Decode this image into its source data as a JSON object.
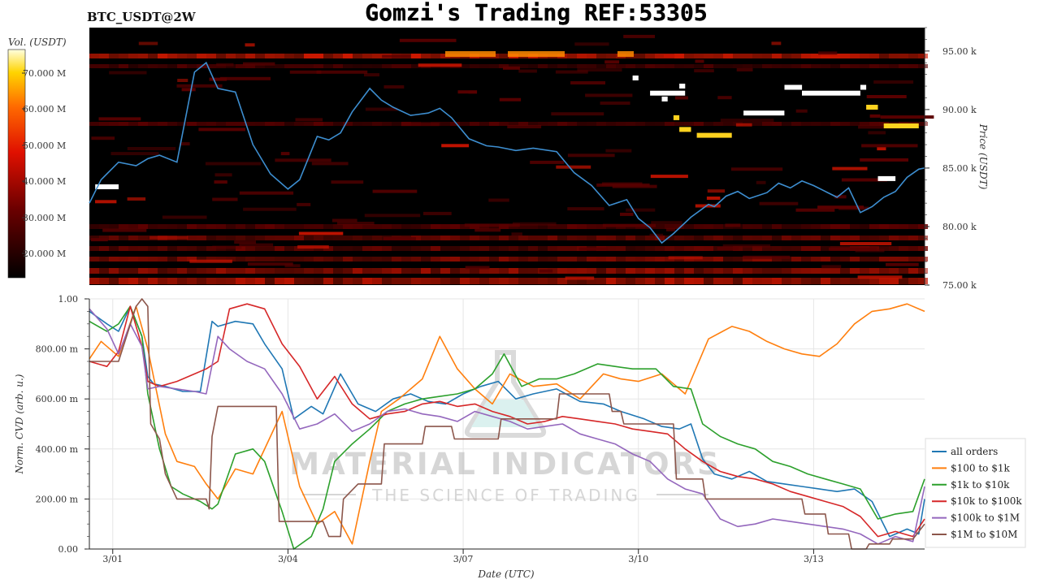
{
  "header": {
    "ticker": "BTC_USDT@2W",
    "title": "Gomzi's Trading REF:53305"
  },
  "watermark": {
    "line1": "MATERIAL INDICATORS",
    "line2": "THE SCIENCE OF TRADING"
  },
  "colors": {
    "heat_bg": "#000000",
    "price_line": "#3d8ed0",
    "big_order": "#ffffff",
    "mid_order": "#ffd21f"
  },
  "chart_data": [
    {
      "type": "heatmap",
      "title": "",
      "colorbar_label": "Vol. (USDT)",
      "colorbar_ticks": [
        "70.000 M",
        "60.000 M",
        "50.000 M",
        "40.000 M",
        "30.000 M",
        "20.000 M"
      ],
      "ylabel": "Price (USDT)",
      "ytick_labels": [
        "95.00 k",
        "90.00 k",
        "85.00 k",
        "80.00 k",
        "75.00 k"
      ],
      "ylim": [
        75000,
        97000
      ],
      "grid": false,
      "price_series": {
        "name": "",
        "x_days": [
          0.0,
          0.2,
          0.5,
          0.8,
          1.0,
          1.2,
          1.5,
          1.8,
          2.0,
          2.2,
          2.5,
          2.8,
          3.1,
          3.4,
          3.6,
          3.9,
          4.1,
          4.3,
          4.5,
          4.8,
          5.0,
          5.2,
          5.5,
          5.8,
          6.0,
          6.2,
          6.5,
          6.8,
          7.0,
          7.3,
          7.6,
          8.0,
          8.3,
          8.6,
          8.9,
          9.2,
          9.4,
          9.6,
          9.8,
          10.0,
          10.3,
          10.6,
          10.7,
          10.9,
          11.1,
          11.3,
          11.6,
          11.8,
          12.0,
          12.2,
          12.4,
          12.6,
          12.8,
          13.0,
          13.2,
          13.4,
          13.6,
          13.8,
          14.0,
          14.2,
          14.3
        ],
        "price": [
          82000,
          84000,
          85500,
          85200,
          85800,
          86100,
          85500,
          93200,
          94000,
          91800,
          91500,
          87000,
          84500,
          83200,
          84000,
          87700,
          87400,
          88000,
          89800,
          91800,
          90800,
          90200,
          89500,
          89700,
          90100,
          89300,
          87500,
          86900,
          86800,
          86500,
          86700,
          86400,
          84600,
          83500,
          81800,
          82300,
          80700,
          79900,
          78600,
          79400,
          80800,
          81900,
          81700,
          82600,
          83000,
          82400,
          82900,
          83700,
          83300,
          83900,
          83500,
          83000,
          82500,
          83300,
          81200,
          81700,
          82500,
          83000,
          84200,
          84900,
          85000
        ]
      },
      "large_orders": [
        {
          "price": 83400,
          "x_start": 0.1,
          "x_end": 0.5,
          "color": "white"
        },
        {
          "price": 92700,
          "x_start": 9.3,
          "x_end": 9.4,
          "color": "white"
        },
        {
          "price": 91400,
          "x_start": 9.6,
          "x_end": 10.2,
          "color": "white"
        },
        {
          "price": 90900,
          "x_start": 9.8,
          "x_end": 9.9,
          "color": "white"
        },
        {
          "price": 92000,
          "x_start": 10.1,
          "x_end": 10.2,
          "color": "white"
        },
        {
          "price": 89700,
          "x_start": 11.2,
          "x_end": 11.9,
          "color": "white"
        },
        {
          "price": 91900,
          "x_start": 11.9,
          "x_end": 12.2,
          "color": "white"
        },
        {
          "price": 91400,
          "x_start": 12.2,
          "x_end": 13.2,
          "color": "white"
        },
        {
          "price": 91900,
          "x_start": 13.2,
          "x_end": 13.3,
          "color": "white"
        },
        {
          "price": 84100,
          "x_start": 13.5,
          "x_end": 13.8,
          "color": "white"
        },
        {
          "price": 89300,
          "x_start": 10.0,
          "x_end": 10.1,
          "color": "yellow"
        },
        {
          "price": 88300,
          "x_start": 10.1,
          "x_end": 10.3,
          "color": "yellow"
        },
        {
          "price": 87800,
          "x_start": 10.4,
          "x_end": 11.0,
          "color": "yellow"
        },
        {
          "price": 90200,
          "x_start": 13.3,
          "x_end": 13.5,
          "color": "yellow"
        },
        {
          "price": 88600,
          "x_start": 13.6,
          "x_end": 14.2,
          "color": "yellow"
        }
      ]
    },
    {
      "type": "line",
      "title": "",
      "xlabel": "Date (UTC)",
      "ylabel": "Norm. CVD (arb. u.)",
      "xtick_labels": [
        "3/01",
        "3/04",
        "3/07",
        "3/10",
        "3/13"
      ],
      "xtick_days": [
        0.4,
        3.4,
        6.4,
        9.4,
        12.4
      ],
      "xlim": [
        0,
        14.3
      ],
      "ylim": [
        0,
        1
      ],
      "ytick_labels": [
        "0.00",
        "200.00 m",
        "400.00 m",
        "600.00 m",
        "800.00 m",
        "1.00"
      ],
      "grid": true,
      "legend": "right",
      "series": [
        {
          "name": "all orders",
          "color": "#1f77b4",
          "x": [
            0.0,
            0.3,
            0.5,
            0.7,
            0.9,
            1.0,
            1.1,
            1.3,
            1.6,
            1.9,
            2.1,
            2.2,
            2.5,
            2.8,
            3.0,
            3.3,
            3.5,
            3.8,
            4.0,
            4.3,
            4.6,
            4.9,
            5.2,
            5.5,
            5.8,
            6.1,
            6.4,
            6.7,
            7.0,
            7.3,
            7.6,
            8.0,
            8.4,
            8.8,
            9.1,
            9.5,
            9.8,
            10.1,
            10.3,
            10.5,
            10.7,
            11.0,
            11.3,
            11.6,
            11.9,
            12.2,
            12.5,
            12.8,
            13.1,
            13.4,
            13.7,
            14.0,
            14.2,
            14.3
          ],
          "y": [
            0.95,
            0.9,
            0.87,
            0.97,
            0.85,
            0.69,
            0.66,
            0.65,
            0.63,
            0.63,
            0.91,
            0.89,
            0.91,
            0.9,
            0.82,
            0.72,
            0.52,
            0.57,
            0.54,
            0.7,
            0.58,
            0.55,
            0.6,
            0.62,
            0.59,
            0.58,
            0.62,
            0.65,
            0.67,
            0.6,
            0.62,
            0.64,
            0.59,
            0.58,
            0.55,
            0.52,
            0.49,
            0.48,
            0.5,
            0.36,
            0.3,
            0.28,
            0.31,
            0.27,
            0.26,
            0.25,
            0.24,
            0.23,
            0.24,
            0.19,
            0.05,
            0.08,
            0.06,
            0.2
          ]
        },
        {
          "name": "$100 to $1k",
          "color": "#ff7f0e",
          "x": [
            0.0,
            0.2,
            0.5,
            0.8,
            1.0,
            1.3,
            1.5,
            1.8,
            2.0,
            2.2,
            2.5,
            2.8,
            3.1,
            3.3,
            3.6,
            3.9,
            4.2,
            4.5,
            4.8,
            5.0,
            5.3,
            5.7,
            6.0,
            6.3,
            6.6,
            6.9,
            7.2,
            7.6,
            8.0,
            8.4,
            8.8,
            9.1,
            9.4,
            9.8,
            10.2,
            10.6,
            11.0,
            11.3,
            11.6,
            11.9,
            12.2,
            12.5,
            12.8,
            13.1,
            13.4,
            13.7,
            14.0,
            14.3
          ],
          "y": [
            0.76,
            0.83,
            0.77,
            0.97,
            0.8,
            0.46,
            0.35,
            0.33,
            0.26,
            0.2,
            0.32,
            0.3,
            0.45,
            0.55,
            0.25,
            0.1,
            0.15,
            0.02,
            0.35,
            0.55,
            0.6,
            0.68,
            0.85,
            0.72,
            0.64,
            0.58,
            0.7,
            0.65,
            0.66,
            0.6,
            0.7,
            0.68,
            0.67,
            0.7,
            0.62,
            0.84,
            0.89,
            0.87,
            0.83,
            0.8,
            0.78,
            0.77,
            0.82,
            0.9,
            0.95,
            0.96,
            0.98,
            0.95
          ]
        },
        {
          "name": "$1k to $10k",
          "color": "#2ca02c",
          "x": [
            0.0,
            0.3,
            0.5,
            0.7,
            0.9,
            1.0,
            1.2,
            1.4,
            1.6,
            1.9,
            2.1,
            2.2,
            2.5,
            2.8,
            3.0,
            3.3,
            3.5,
            3.8,
            4.0,
            4.2,
            4.5,
            4.8,
            5.1,
            5.4,
            5.7,
            6.0,
            6.3,
            6.6,
            6.9,
            7.1,
            7.4,
            7.7,
            8.0,
            8.3,
            8.7,
            9.0,
            9.3,
            9.7,
            10.0,
            10.3,
            10.5,
            10.8,
            11.1,
            11.4,
            11.7,
            12.0,
            12.3,
            12.6,
            12.9,
            13.2,
            13.5,
            13.8,
            14.1,
            14.3
          ],
          "y": [
            0.91,
            0.87,
            0.9,
            0.97,
            0.85,
            0.62,
            0.4,
            0.25,
            0.22,
            0.19,
            0.16,
            0.18,
            0.38,
            0.4,
            0.35,
            0.15,
            0.0,
            0.05,
            0.16,
            0.35,
            0.42,
            0.48,
            0.55,
            0.58,
            0.6,
            0.61,
            0.62,
            0.64,
            0.7,
            0.78,
            0.65,
            0.68,
            0.68,
            0.7,
            0.74,
            0.73,
            0.72,
            0.72,
            0.65,
            0.64,
            0.5,
            0.45,
            0.42,
            0.4,
            0.35,
            0.33,
            0.3,
            0.28,
            0.26,
            0.24,
            0.12,
            0.14,
            0.15,
            0.28
          ]
        },
        {
          "name": "$10k to $100k",
          "color": "#d62728",
          "x": [
            0.0,
            0.3,
            0.5,
            0.7,
            0.9,
            1.0,
            1.2,
            1.5,
            1.8,
            2.0,
            2.2,
            2.4,
            2.7,
            3.0,
            3.3,
            3.6,
            3.9,
            4.2,
            4.5,
            4.8,
            5.1,
            5.4,
            5.7,
            6.0,
            6.3,
            6.6,
            6.9,
            7.2,
            7.5,
            7.8,
            8.1,
            8.4,
            8.7,
            9.0,
            9.3,
            9.6,
            9.9,
            10.2,
            10.5,
            10.8,
            11.1,
            11.4,
            11.7,
            12.0,
            12.3,
            12.6,
            12.9,
            13.2,
            13.5,
            13.8,
            14.1,
            14.3
          ],
          "y": [
            0.75,
            0.73,
            0.79,
            0.97,
            0.81,
            0.67,
            0.65,
            0.67,
            0.7,
            0.72,
            0.75,
            0.96,
            0.98,
            0.96,
            0.82,
            0.73,
            0.6,
            0.69,
            0.58,
            0.52,
            0.54,
            0.55,
            0.58,
            0.59,
            0.57,
            0.58,
            0.55,
            0.53,
            0.5,
            0.51,
            0.53,
            0.52,
            0.51,
            0.5,
            0.48,
            0.47,
            0.46,
            0.4,
            0.35,
            0.31,
            0.29,
            0.28,
            0.26,
            0.23,
            0.21,
            0.19,
            0.17,
            0.13,
            0.05,
            0.07,
            0.05,
            0.12
          ]
        },
        {
          "name": "$100k to $1M",
          "color": "#9467bd",
          "x": [
            0.0,
            0.3,
            0.5,
            0.7,
            0.9,
            1.0,
            1.2,
            1.5,
            1.8,
            2.0,
            2.2,
            2.4,
            2.7,
            3.0,
            3.3,
            3.6,
            3.9,
            4.2,
            4.5,
            4.8,
            5.1,
            5.4,
            5.7,
            6.0,
            6.3,
            6.6,
            6.9,
            7.2,
            7.5,
            7.8,
            8.1,
            8.4,
            8.7,
            9.0,
            9.3,
            9.6,
            9.9,
            10.2,
            10.5,
            10.8,
            11.1,
            11.4,
            11.7,
            12.0,
            12.3,
            12.6,
            12.9,
            13.2,
            13.5,
            13.8,
            14.1,
            14.3
          ],
          "y": [
            0.96,
            0.88,
            0.78,
            0.9,
            0.81,
            0.64,
            0.65,
            0.64,
            0.63,
            0.62,
            0.85,
            0.8,
            0.75,
            0.72,
            0.62,
            0.48,
            0.5,
            0.54,
            0.47,
            0.5,
            0.55,
            0.56,
            0.54,
            0.53,
            0.51,
            0.55,
            0.53,
            0.51,
            0.48,
            0.49,
            0.5,
            0.46,
            0.44,
            0.42,
            0.38,
            0.35,
            0.28,
            0.24,
            0.22,
            0.12,
            0.09,
            0.1,
            0.12,
            0.11,
            0.1,
            0.09,
            0.08,
            0.06,
            0.02,
            0.05,
            0.03,
            0.25
          ]
        },
        {
          "name": "$1M to $10M",
          "color": "#8c564b",
          "x": [
            0.0,
            0.5,
            0.8,
            0.9,
            1.0,
            1.05,
            1.2,
            1.3,
            1.5,
            2.0,
            2.05,
            2.1,
            2.2,
            3.2,
            3.25,
            3.5,
            4.0,
            4.1,
            4.3,
            4.35,
            4.6,
            5.0,
            5.05,
            5.7,
            5.75,
            6.2,
            6.25,
            7.0,
            7.05,
            8.0,
            8.05,
            8.9,
            8.95,
            9.1,
            9.15,
            10.0,
            10.05,
            10.5,
            10.55,
            12.2,
            12.25,
            12.6,
            12.65,
            13.0,
            13.05,
            13.3,
            13.35,
            13.7,
            13.75,
            14.1,
            14.3
          ],
          "y": [
            0.75,
            0.75,
            0.97,
            1.0,
            0.97,
            0.5,
            0.44,
            0.3,
            0.2,
            0.2,
            0.16,
            0.45,
            0.57,
            0.57,
            0.11,
            0.11,
            0.11,
            0.05,
            0.05,
            0.2,
            0.26,
            0.26,
            0.42,
            0.42,
            0.49,
            0.49,
            0.44,
            0.44,
            0.52,
            0.52,
            0.62,
            0.62,
            0.55,
            0.55,
            0.5,
            0.5,
            0.28,
            0.28,
            0.2,
            0.2,
            0.14,
            0.14,
            0.06,
            0.06,
            0.0,
            0.0,
            0.02,
            0.02,
            0.04,
            0.04,
            0.1
          ]
        }
      ]
    }
  ]
}
